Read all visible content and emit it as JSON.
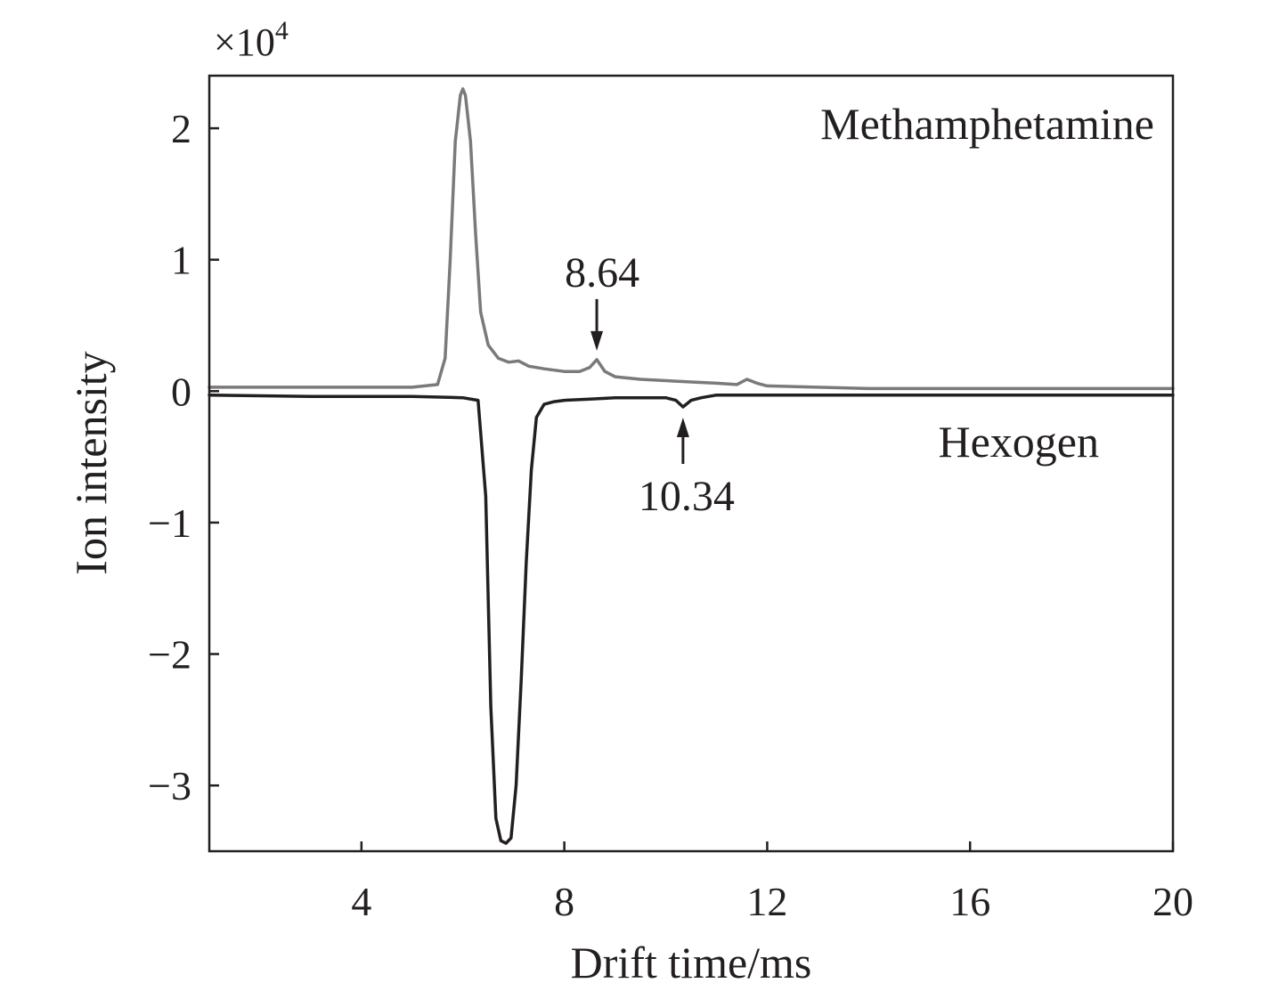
{
  "chart_data": {
    "type": "line",
    "xlabel": "Drift time/ms",
    "ylabel": "Ion intensity",
    "scale_label_prefix": "×10",
    "scale_label_exponent": "4",
    "xlim": [
      1,
      20
    ],
    "ylim": [
      -3.5,
      2.4
    ],
    "xticks": [
      {
        "value": 4,
        "label": "4"
      },
      {
        "value": 8,
        "label": "8"
      },
      {
        "value": 12,
        "label": "12"
      },
      {
        "value": 16,
        "label": "16"
      },
      {
        "value": 20,
        "label": "20"
      }
    ],
    "yticks": [
      {
        "value": 2,
        "label": "2"
      },
      {
        "value": 1,
        "label": "1"
      },
      {
        "value": 0,
        "label": "0"
      },
      {
        "value": -1,
        "label": "−1"
      },
      {
        "value": -2,
        "label": "−2"
      },
      {
        "value": -3,
        "label": "−3"
      }
    ],
    "grid": false,
    "series": [
      {
        "name": "Methamphetamine",
        "color": "#7a7a7a",
        "x": [
          1.0,
          3.0,
          5.0,
          5.5,
          5.65,
          5.75,
          5.85,
          5.95,
          6.0,
          6.05,
          6.15,
          6.25,
          6.35,
          6.5,
          6.7,
          6.9,
          7.1,
          7.3,
          7.6,
          8.0,
          8.3,
          8.5,
          8.64,
          8.8,
          9.0,
          9.5,
          10.0,
          10.5,
          11.0,
          11.4,
          11.6,
          11.8,
          12.0,
          13.0,
          14.0,
          16.0,
          20.0
        ],
        "y": [
          0.03,
          0.03,
          0.03,
          0.05,
          0.25,
          1.0,
          1.9,
          2.25,
          2.3,
          2.25,
          1.9,
          1.2,
          0.6,
          0.35,
          0.25,
          0.22,
          0.23,
          0.19,
          0.17,
          0.15,
          0.15,
          0.18,
          0.24,
          0.15,
          0.11,
          0.09,
          0.08,
          0.07,
          0.06,
          0.05,
          0.09,
          0.06,
          0.04,
          0.03,
          0.02,
          0.02,
          0.02
        ]
      },
      {
        "name": "Hexogen",
        "color": "#231f20",
        "x": [
          1.0,
          3.0,
          5.0,
          6.0,
          6.3,
          6.45,
          6.55,
          6.65,
          6.75,
          6.85,
          6.95,
          7.05,
          7.15,
          7.25,
          7.35,
          7.45,
          7.6,
          7.8,
          8.0,
          8.5,
          9.0,
          9.5,
          10.0,
          10.2,
          10.34,
          10.5,
          10.7,
          11.0,
          12.0,
          14.0,
          16.0,
          20.0
        ],
        "y": [
          -0.03,
          -0.04,
          -0.04,
          -0.05,
          -0.07,
          -0.8,
          -2.4,
          -3.25,
          -3.42,
          -3.44,
          -3.4,
          -3.0,
          -2.2,
          -1.3,
          -0.6,
          -0.2,
          -0.1,
          -0.08,
          -0.07,
          -0.06,
          -0.05,
          -0.05,
          -0.05,
          -0.07,
          -0.12,
          -0.07,
          -0.05,
          -0.03,
          -0.03,
          -0.03,
          -0.03,
          -0.03
        ]
      }
    ],
    "annotations": [
      {
        "text": "8.64",
        "x": 8.64,
        "y": 0.24,
        "direction": "down"
      },
      {
        "text": "10.34",
        "x": 10.34,
        "y": -0.12,
        "direction": "up"
      }
    ]
  }
}
